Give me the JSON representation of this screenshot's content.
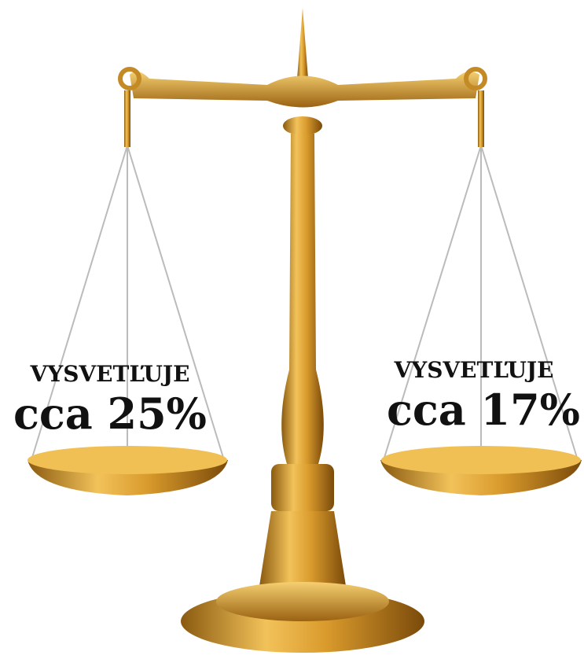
{
  "left": {
    "heading": "VYSVETĽUJE",
    "text": "cca 25%"
  },
  "right": {
    "heading": "VYSVETĽUJE",
    "text": "cca 17%"
  }
}
